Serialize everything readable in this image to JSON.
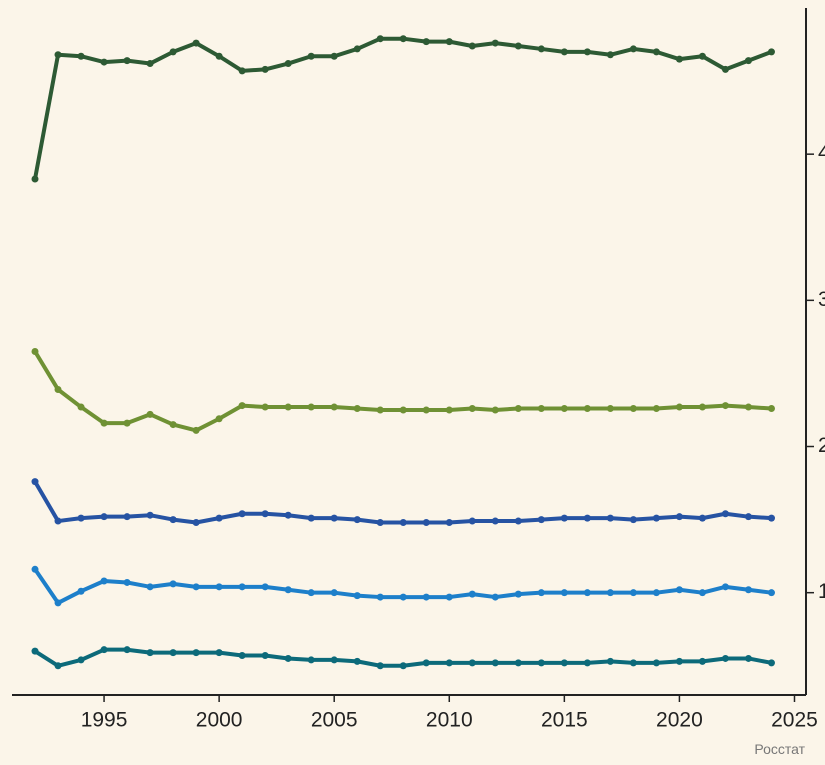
{
  "chart_data": {
    "type": "line",
    "x": [
      1992,
      1993,
      1994,
      1995,
      1996,
      1997,
      1998,
      1999,
      2000,
      2001,
      2002,
      2003,
      2004,
      2005,
      2006,
      2007,
      2008,
      2009,
      2010,
      2011,
      2012,
      2013,
      2014,
      2015,
      2016,
      2017,
      2018,
      2019,
      2020,
      2021,
      2022,
      2023,
      2024
    ],
    "series": [
      {
        "color": "#2d5a34",
        "values": [
          3.83,
          4.68,
          4.67,
          4.63,
          4.64,
          4.62,
          4.7,
          4.76,
          4.67,
          4.57,
          4.58,
          4.62,
          4.67,
          4.67,
          4.72,
          4.79,
          4.79,
          4.77,
          4.77,
          4.74,
          4.76,
          4.74,
          4.72,
          4.7,
          4.7,
          4.68,
          4.72,
          4.7,
          4.65,
          4.67,
          4.58,
          4.64,
          4.7
        ]
      },
      {
        "color": "#6f9134",
        "values": [
          2.65,
          2.39,
          2.27,
          2.16,
          2.16,
          2.22,
          2.15,
          2.11,
          2.19,
          2.28,
          2.27,
          2.27,
          2.27,
          2.27,
          2.26,
          2.25,
          2.25,
          2.25,
          2.25,
          2.26,
          2.25,
          2.26,
          2.26,
          2.26,
          2.26,
          2.26,
          2.26,
          2.26,
          2.27,
          2.27,
          2.28,
          2.27,
          2.26
        ]
      },
      {
        "color": "#2653a3",
        "values": [
          1.76,
          1.49,
          1.51,
          1.52,
          1.52,
          1.53,
          1.5,
          1.48,
          1.51,
          1.54,
          1.54,
          1.53,
          1.51,
          1.51,
          1.5,
          1.48,
          1.48,
          1.48,
          1.48,
          1.49,
          1.49,
          1.49,
          1.5,
          1.51,
          1.51,
          1.51,
          1.5,
          1.51,
          1.52,
          1.51,
          1.54,
          1.52,
          1.51
        ]
      },
      {
        "color": "#1d7fca",
        "values": [
          1.16,
          0.93,
          1.01,
          1.08,
          1.07,
          1.04,
          1.06,
          1.04,
          1.04,
          1.04,
          1.04,
          1.02,
          1.0,
          1.0,
          0.98,
          0.97,
          0.97,
          0.97,
          0.97,
          0.99,
          0.97,
          0.99,
          1.0,
          1.0,
          1.0,
          1.0,
          1.0,
          1.0,
          1.02,
          1.0,
          1.04,
          1.02,
          1.0
        ]
      },
      {
        "color": "#0c6a7a",
        "values": [
          0.6,
          0.5,
          0.54,
          0.61,
          0.61,
          0.59,
          0.59,
          0.59,
          0.59,
          0.57,
          0.57,
          0.55,
          0.54,
          0.54,
          0.53,
          0.5,
          0.5,
          0.52,
          0.52,
          0.52,
          0.52,
          0.52,
          0.52,
          0.52,
          0.52,
          0.53,
          0.52,
          0.52,
          0.53,
          0.53,
          0.55,
          0.55,
          0.52
        ]
      }
    ],
    "xlim": [
      1991,
      2025.5
    ],
    "xticks": [
      1995,
      2000,
      2005,
      2010,
      2015,
      2020,
      2025
    ],
    "ylim": [
      0.3,
      5
    ],
    "yticks": [
      1,
      2,
      3,
      4
    ],
    "source": "Росстат"
  }
}
